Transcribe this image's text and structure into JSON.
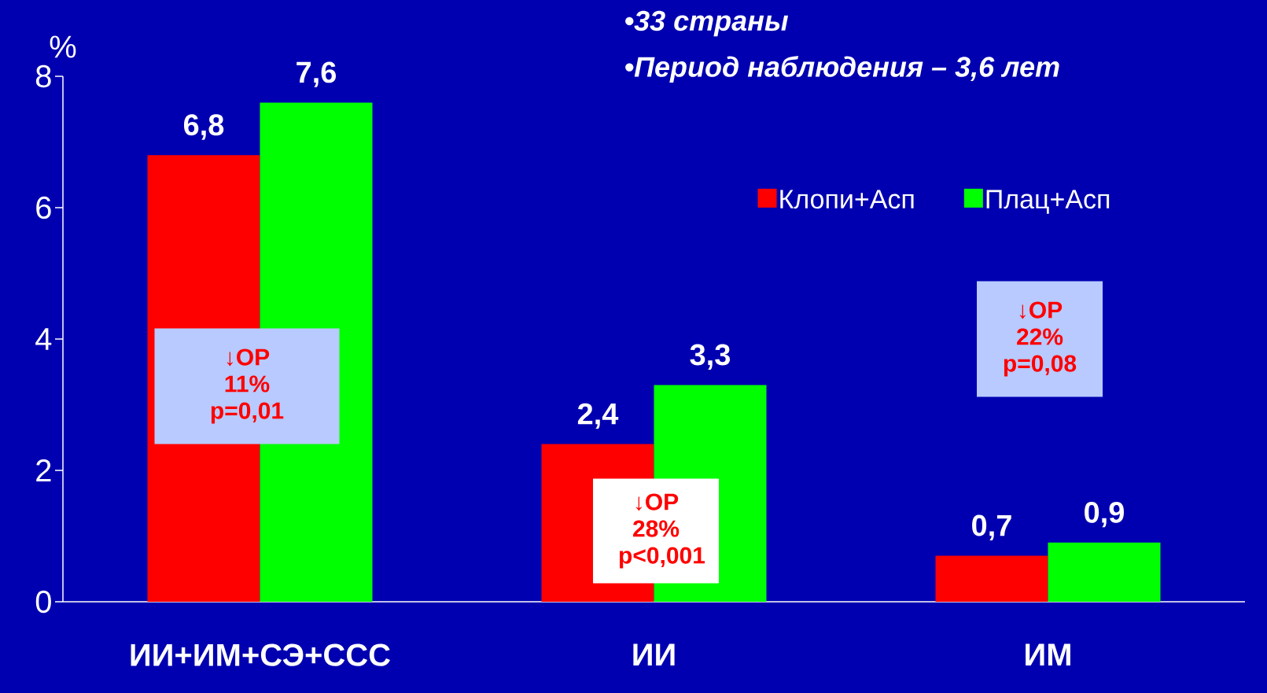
{
  "chart_data": {
    "type": "bar",
    "categories": [
      "ИИ+ИМ+СЭ+ССС",
      "ИИ",
      "ИМ"
    ],
    "series": [
      {
        "name": "Клопи+Асп",
        "color": "#ff0000",
        "values": [
          6.8,
          2.4,
          0.7
        ],
        "value_labels": [
          "6,8",
          "2,4",
          "0,7"
        ]
      },
      {
        "name": "Плац+Асп",
        "color": "#00ff00",
        "values": [
          7.6,
          3.3,
          0.9
        ],
        "value_labels": [
          "7,6",
          "3,3",
          "0,9"
        ]
      }
    ],
    "ylabel": "%",
    "ylim": [
      0,
      8
    ],
    "yticks": [
      0,
      2,
      4,
      6,
      8
    ],
    "legend": "top right",
    "annotations": [
      "•33 страны",
      "•Период наблюдения – 3,6 лет",
      "↓ОР 11% p=0,01",
      "↓ОР 28% p<0,001",
      "↓ОР 22% p=0,08"
    ]
  }
}
